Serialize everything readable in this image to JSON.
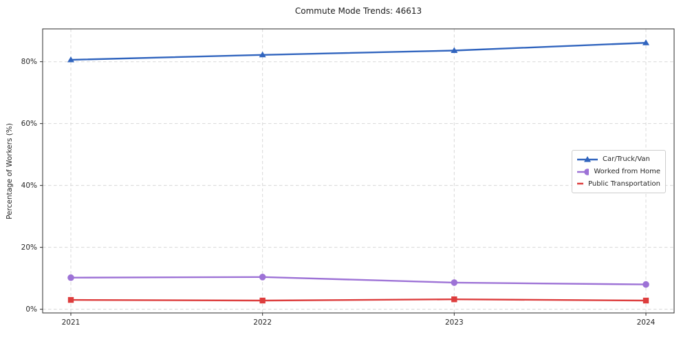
{
  "figure": {
    "title": "Commute Mode Trends: 46613",
    "ylabel": "Percentage of Workers (%)"
  },
  "chart_data": {
    "type": "line",
    "title": "Commute Mode Trends: 46613",
    "xlabel": "",
    "ylabel": "Percentage of Workers (%)",
    "x": [
      "2021",
      "2022",
      "2023",
      "2024"
    ],
    "series": [
      {
        "name": "Car/Truck/Van",
        "values": [
          80.6,
          82.2,
          83.6,
          86.1
        ],
        "color": "#3064be",
        "marker": "triangle"
      },
      {
        "name": "Worked from Home",
        "values": [
          10.2,
          10.4,
          8.6,
          8.0
        ],
        "color": "#9d72d6",
        "marker": "circle"
      },
      {
        "name": "Public Transportation",
        "values": [
          3.0,
          2.8,
          3.2,
          2.8
        ],
        "color": "#dd3d3d",
        "marker": "square"
      }
    ],
    "ylim": [
      -1.2,
      90.6
    ],
    "yticks": [
      0,
      20,
      40,
      60,
      80
    ],
    "ytick_labels": [
      "0%",
      "20%",
      "40%",
      "60%",
      "80%"
    ],
    "grid": true,
    "grid_style": "dashed",
    "legend_position": "center-right"
  },
  "colors": {
    "grid": "#d8d8d8",
    "spine": "#2a2a2a",
    "text": "#262626",
    "background": "#ffffff",
    "legend_border": "#cccccc"
  }
}
